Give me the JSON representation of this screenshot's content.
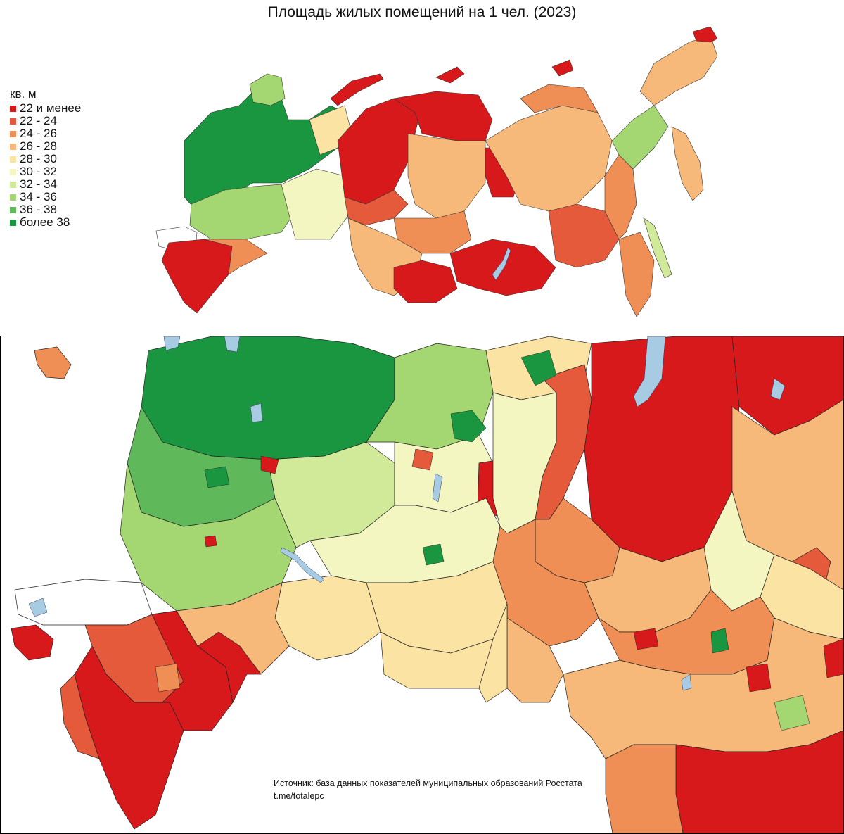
{
  "title": "Площадь жилых помещений на 1 чел. (2023)",
  "legend": {
    "unit": "кв. м",
    "classes": [
      {
        "label": "22 и менее",
        "color": "#d7191c"
      },
      {
        "label": "22 - 24",
        "color": "#e45a3a"
      },
      {
        "label": "24 - 26",
        "color": "#f08f55"
      },
      {
        "label": "26 - 28",
        "color": "#f7b97a"
      },
      {
        "label": "28 - 30",
        "color": "#fbe3a3"
      },
      {
        "label": "30 - 32",
        "color": "#f3f6c0"
      },
      {
        "label": "32 - 34",
        "color": "#d1ea9a"
      },
      {
        "label": "34 - 36",
        "color": "#a4d672"
      },
      {
        "label": "36 - 38",
        "color": "#5fb85a"
      },
      {
        "label": "более 38",
        "color": "#1a9641"
      }
    ]
  },
  "colors": {
    "water": "#a6cbe3",
    "no_data": "#ffffff",
    "border": "#000000"
  },
  "source": {
    "line1": "Источник: база данных показателей муниципальных образований Росстата",
    "line2": "t.me/totalepc"
  }
}
